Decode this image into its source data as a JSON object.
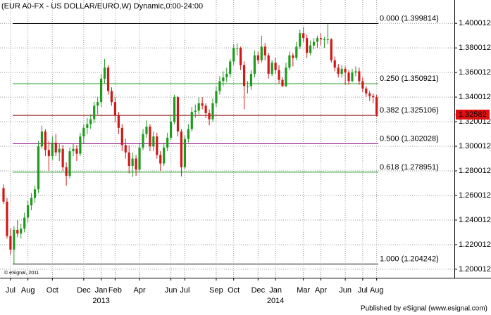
{
  "chart_data": {
    "type": "candlestick",
    "title": "(EUR A0-FX - US DOLLAR/EURO,W) Dynamic,0:00-24:00",
    "credit": "© eSignal, 2011",
    "footer": "Published by eSignal (www.esignal.com)",
    "ylim": [
      1.1931,
      1.419
    ],
    "yticks": [
      1.200012,
      1.220012,
      1.240012,
      1.260012,
      1.280012,
      1.300012,
      1.320012,
      1.340012,
      1.360012,
      1.380012,
      1.400012
    ],
    "grid": true,
    "up_color": "#1f9a1f",
    "down_color": "#d01818",
    "last_price": 1.32582,
    "last_price_color": "#e01010",
    "fib_levels": [
      {
        "label": "0.000 (1.399814)",
        "value": 1.399814,
        "color": "#000000"
      },
      {
        "label": "0.250 (1.350921)",
        "value": 1.350921,
        "color": "#2a9d2a"
      },
      {
        "label": "0.382 (1.325106)",
        "value": 1.325106,
        "color": "#8b0000"
      },
      {
        "label": "0.500 (1.302028)",
        "value": 1.302028,
        "color": "#8b008b"
      },
      {
        "label": "0.618 (1.278951)",
        "value": 1.278951,
        "color": "#2a9d2a"
      },
      {
        "label": "1.000 (1.204242)",
        "value": 1.204242,
        "color": "#000000"
      }
    ],
    "categories": [
      null,
      null,
      "Jul",
      null,
      null,
      null,
      null,
      "Aug",
      null,
      null,
      null,
      null,
      null,
      null,
      "Oct",
      null,
      null,
      null,
      null,
      null,
      null,
      null,
      null,
      "Dec",
      null,
      null,
      null,
      null,
      "Jan",
      null,
      null,
      null,
      "Feb",
      null,
      null,
      null,
      null,
      null,
      null,
      "Apr",
      null,
      null,
      null,
      null,
      null,
      null,
      null,
      null,
      "Jun",
      null,
      null,
      null,
      "Jul",
      null,
      null,
      null,
      null,
      null,
      null,
      null,
      null,
      "Sep",
      null,
      null,
      null,
      null,
      "Oct",
      null,
      null,
      null,
      null,
      null,
      null,
      "Dec",
      null,
      null,
      null,
      null,
      "Jan",
      null,
      null,
      null,
      null,
      null,
      null,
      null,
      "Mar",
      null,
      null,
      null,
      null,
      "Apr",
      null,
      null,
      null,
      null,
      null,
      null,
      "Jun",
      null,
      null,
      null,
      null,
      "Jul",
      null,
      null,
      null,
      "Aug"
    ],
    "category_years": [
      null,
      null,
      null,
      null,
      null,
      null,
      null,
      null,
      null,
      null,
      null,
      null,
      null,
      null,
      null,
      null,
      null,
      null,
      null,
      null,
      null,
      null,
      null,
      null,
      null,
      null,
      null,
      null,
      "2013",
      null,
      null,
      null,
      null,
      null,
      null,
      null,
      null,
      null,
      null,
      null,
      null,
      null,
      null,
      null,
      null,
      null,
      null,
      null,
      null,
      null,
      null,
      null,
      null,
      null,
      null,
      null,
      null,
      null,
      null,
      null,
      null,
      null,
      null,
      null,
      null,
      null,
      null,
      null,
      null,
      null,
      null,
      null,
      null,
      null,
      null,
      null,
      null,
      null,
      "2014",
      null,
      null,
      null,
      null,
      null,
      null,
      null,
      null,
      null,
      null,
      null,
      null,
      null,
      null,
      null,
      null,
      null,
      null,
      null,
      null,
      null,
      null,
      null,
      null,
      null,
      null,
      null,
      null,
      null
    ],
    "ohlc": [
      [
        1.266,
        1.269,
        1.253,
        1.255
      ],
      [
        1.255,
        1.258,
        1.225,
        1.227
      ],
      [
        1.227,
        1.233,
        1.212,
        1.216
      ],
      [
        1.216,
        1.235,
        1.2042,
        1.232
      ],
      [
        1.232,
        1.24,
        1.226,
        1.229
      ],
      [
        1.229,
        1.237,
        1.225,
        1.233
      ],
      [
        1.233,
        1.246,
        1.23,
        1.242
      ],
      [
        1.242,
        1.256,
        1.238,
        1.252
      ],
      [
        1.252,
        1.262,
        1.248,
        1.258
      ],
      [
        1.258,
        1.268,
        1.254,
        1.265
      ],
      [
        1.265,
        1.304,
        1.262,
        1.3
      ],
      [
        1.3,
        1.317,
        1.298,
        1.312
      ],
      [
        1.312,
        1.314,
        1.292,
        1.297
      ],
      [
        1.297,
        1.304,
        1.28,
        1.292
      ],
      [
        1.292,
        1.308,
        1.289,
        1.303
      ],
      [
        1.303,
        1.31,
        1.292,
        1.295
      ],
      [
        1.295,
        1.302,
        1.288,
        1.298
      ],
      [
        1.298,
        1.301,
        1.28,
        1.283
      ],
      [
        1.283,
        1.287,
        1.268,
        1.276
      ],
      [
        1.276,
        1.299,
        1.274,
        1.296
      ],
      [
        1.296,
        1.302,
        1.292,
        1.298
      ],
      [
        1.298,
        1.301,
        1.288,
        1.294
      ],
      [
        1.294,
        1.311,
        1.292,
        1.308
      ],
      [
        1.308,
        1.318,
        1.302,
        1.315
      ],
      [
        1.315,
        1.323,
        1.31,
        1.318
      ],
      [
        1.318,
        1.326,
        1.314,
        1.322
      ],
      [
        1.322,
        1.336,
        1.319,
        1.333
      ],
      [
        1.333,
        1.34,
        1.326,
        1.336
      ],
      [
        1.336,
        1.359,
        1.332,
        1.355
      ],
      [
        1.355,
        1.371,
        1.351,
        1.364
      ],
      [
        1.364,
        1.366,
        1.342,
        1.345
      ],
      [
        1.345,
        1.348,
        1.333,
        1.336
      ],
      [
        1.336,
        1.34,
        1.32,
        1.325
      ],
      [
        1.325,
        1.328,
        1.31,
        1.315
      ],
      [
        1.315,
        1.318,
        1.296,
        1.301
      ],
      [
        1.301,
        1.306,
        1.29,
        1.295
      ],
      [
        1.295,
        1.301,
        1.278,
        1.284
      ],
      [
        1.284,
        1.295,
        1.275,
        1.29
      ],
      [
        1.29,
        1.293,
        1.276,
        1.281
      ],
      [
        1.281,
        1.303,
        1.279,
        1.299
      ],
      [
        1.299,
        1.314,
        1.297,
        1.31
      ],
      [
        1.31,
        1.321,
        1.307,
        1.316
      ],
      [
        1.316,
        1.318,
        1.296,
        1.3
      ],
      [
        1.3,
        1.312,
        1.296,
        1.308
      ],
      [
        1.308,
        1.311,
        1.29,
        1.293
      ],
      [
        1.293,
        1.296,
        1.28,
        1.286
      ],
      [
        1.286,
        1.303,
        1.284,
        1.299
      ],
      [
        1.299,
        1.311,
        1.296,
        1.307
      ],
      [
        1.307,
        1.325,
        1.305,
        1.32
      ],
      [
        1.32,
        1.342,
        1.318,
        1.34
      ],
      [
        1.34,
        1.341,
        1.308,
        1.312
      ],
      [
        1.312,
        1.314,
        1.2755,
        1.283
      ],
      [
        1.283,
        1.309,
        1.281,
        1.306
      ],
      [
        1.306,
        1.318,
        1.303,
        1.314
      ],
      [
        1.314,
        1.332,
        1.312,
        1.328
      ],
      [
        1.328,
        1.334,
        1.323,
        1.329
      ],
      [
        1.329,
        1.34,
        1.326,
        1.335
      ],
      [
        1.335,
        1.34,
        1.33,
        1.333
      ],
      [
        1.333,
        1.335,
        1.323,
        1.327
      ],
      [
        1.327,
        1.33,
        1.317,
        1.322
      ],
      [
        1.322,
        1.339,
        1.32,
        1.335
      ],
      [
        1.335,
        1.349,
        1.332,
        1.345
      ],
      [
        1.345,
        1.357,
        1.342,
        1.353
      ],
      [
        1.353,
        1.361,
        1.349,
        1.356
      ],
      [
        1.356,
        1.364,
        1.352,
        1.359
      ],
      [
        1.359,
        1.371,
        1.356,
        1.369
      ],
      [
        1.369,
        1.383,
        1.366,
        1.38
      ],
      [
        1.38,
        1.384,
        1.374,
        1.38
      ],
      [
        1.38,
        1.381,
        1.362,
        1.366
      ],
      [
        1.366,
        1.369,
        1.33,
        1.349
      ],
      [
        1.349,
        1.353,
        1.343,
        1.349
      ],
      [
        1.349,
        1.362,
        1.346,
        1.359
      ],
      [
        1.359,
        1.378,
        1.356,
        1.374
      ],
      [
        1.374,
        1.377,
        1.367,
        1.37
      ],
      [
        1.37,
        1.39,
        1.368,
        1.381
      ],
      [
        1.381,
        1.384,
        1.37,
        1.374
      ],
      [
        1.374,
        1.376,
        1.355,
        1.359
      ],
      [
        1.359,
        1.37,
        1.357,
        1.368
      ],
      [
        1.368,
        1.372,
        1.359,
        1.362
      ],
      [
        1.362,
        1.366,
        1.351,
        1.354
      ],
      [
        1.354,
        1.356,
        1.348,
        1.349
      ],
      [
        1.349,
        1.368,
        1.348,
        1.364
      ],
      [
        1.364,
        1.377,
        1.362,
        1.374
      ],
      [
        1.374,
        1.376,
        1.365,
        1.372
      ],
      [
        1.372,
        1.385,
        1.37,
        1.381
      ],
      [
        1.381,
        1.395,
        1.379,
        1.392
      ],
      [
        1.392,
        1.397,
        1.385,
        1.388
      ],
      [
        1.388,
        1.391,
        1.372,
        1.376
      ],
      [
        1.376,
        1.386,
        1.374,
        1.382
      ],
      [
        1.382,
        1.388,
        1.379,
        1.385
      ],
      [
        1.385,
        1.39,
        1.38,
        1.388
      ],
      [
        1.388,
        1.392,
        1.382,
        1.387
      ],
      [
        1.387,
        1.389,
        1.38,
        1.387
      ],
      [
        1.387,
        1.3993,
        1.383,
        1.387
      ],
      [
        1.387,
        1.388,
        1.368,
        1.37
      ],
      [
        1.37,
        1.373,
        1.361,
        1.364
      ],
      [
        1.364,
        1.367,
        1.356,
        1.359
      ],
      [
        1.359,
        1.366,
        1.356,
        1.363
      ],
      [
        1.363,
        1.365,
        1.35,
        1.36
      ],
      [
        1.36,
        1.362,
        1.35,
        1.353
      ],
      [
        1.353,
        1.363,
        1.352,
        1.36
      ],
      [
        1.36,
        1.365,
        1.357,
        1.361
      ],
      [
        1.361,
        1.364,
        1.35,
        1.353
      ],
      [
        1.353,
        1.356,
        1.344,
        1.347
      ],
      [
        1.347,
        1.349,
        1.34,
        1.343
      ],
      [
        1.343,
        1.345,
        1.337,
        1.341
      ],
      [
        1.341,
        1.343,
        1.335,
        1.34
      ],
      [
        1.34,
        1.342,
        1.324,
        1.3258
      ]
    ]
  }
}
